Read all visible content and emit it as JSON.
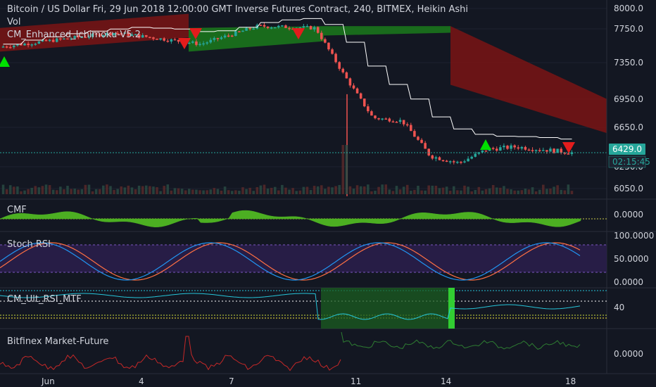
{
  "header": {
    "title": "Bitcoin / US Dollar Fri, 29 Jun 2018 12:00:00 GMT Inverse Futures Contract, 240, BITMEX, Heikin Ashi",
    "vol_label": "Vol",
    "indicator_label": "CM_Enhanced_Ichimoku-V5.2"
  },
  "colors": {
    "background": "#131722",
    "up": "#26a69a",
    "down": "#ef5350",
    "kumo_bull": "#1b7a1b",
    "kumo_bear": "#7a1414",
    "cmf": "#4caf22",
    "stoch_k": "#2196f3",
    "stoch_d": "#ff7043",
    "rsi_line": "#26c6da",
    "market_future_up": "#2e7d32",
    "market_future_down": "#c62828",
    "price_label": "#26a69a"
  },
  "price_pane": {
    "y_ticks": [
      "8000.0",
      "7750.0",
      "7350.0",
      "6950.0",
      "6650.0",
      "6250.0",
      "6050.0"
    ],
    "current_price": "6429.0",
    "countdown": "02:15:45"
  },
  "panes": {
    "cmf": {
      "label": "CMF",
      "ticks": [
        "0.0000"
      ]
    },
    "stoch": {
      "label": "Stoch RSI",
      "ticks": [
        "100.0000",
        "50.0000",
        "0.0000"
      ]
    },
    "rsi": {
      "label": "CM_Ult_RSI_MTF",
      "ticks": [
        "40"
      ]
    },
    "mf": {
      "label": "Bitfinex Market-Future",
      "ticks": [
        "0.0000"
      ]
    }
  },
  "x_axis": {
    "ticks": [
      "Jun",
      "4",
      "7",
      "11",
      "14",
      "18"
    ]
  },
  "chart_data": {
    "type": "candlestick",
    "symbol": "BTCUSD",
    "x_range": [
      "2018-05-29",
      "2018-06-18"
    ],
    "ohlc_anchors": [
      {
        "date": "2018-05-29",
        "close": 7500
      },
      {
        "date": "2018-06-02",
        "close": 7650
      },
      {
        "date": "2018-06-05",
        "close": 7530
      },
      {
        "date": "2018-06-07",
        "close": 7720
      },
      {
        "date": "2018-06-09",
        "close": 7700
      },
      {
        "date": "2018-06-10",
        "close": 7200
      },
      {
        "date": "2018-06-11",
        "close": 6750
      },
      {
        "date": "2018-06-12",
        "close": 6720
      },
      {
        "date": "2018-06-13",
        "close": 6400
      },
      {
        "date": "2018-06-14",
        "close": 6340
      },
      {
        "date": "2018-06-15",
        "close": 6460
      },
      {
        "date": "2018-06-16",
        "close": 6480
      },
      {
        "date": "2018-06-18",
        "close": 6429
      }
    ],
    "y_range": [
      6000,
      8000
    ],
    "last_price": 6429.0
  }
}
